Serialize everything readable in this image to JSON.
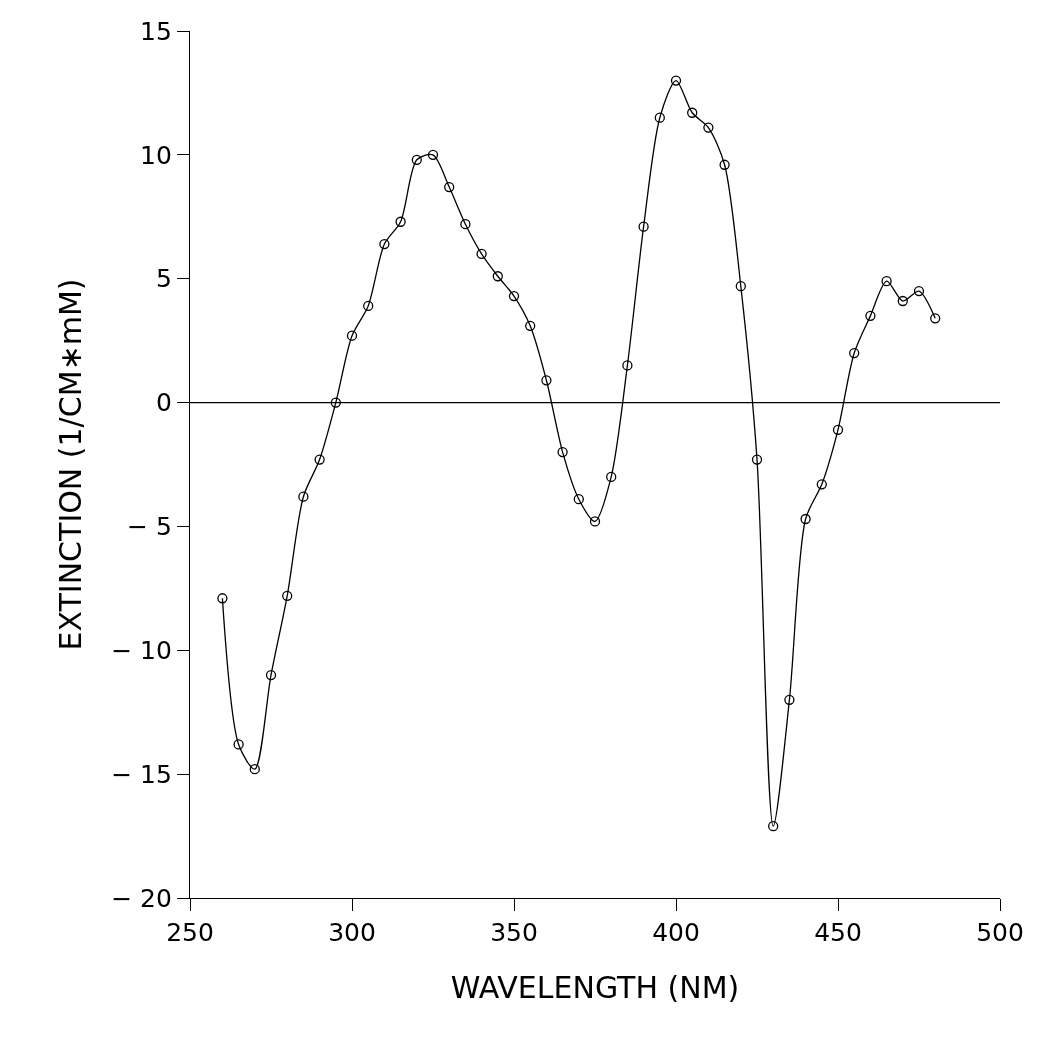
{
  "chart_data": {
    "type": "line",
    "xlabel": "WAVELENGTH (NM)",
    "ylabel": "EXTINCTION (1/CM∗mM)",
    "x": [
      260,
      265,
      270,
      275,
      280,
      285,
      290,
      295,
      300,
      305,
      310,
      315,
      320,
      325,
      330,
      335,
      340,
      345,
      350,
      355,
      360,
      365,
      370,
      375,
      380,
      385,
      390,
      395,
      400,
      405,
      410,
      415,
      420,
      425,
      430,
      435,
      440,
      445,
      450,
      455,
      460,
      465,
      470,
      475,
      480
    ],
    "series": [
      {
        "color": "#000000",
        "values": [
          -7.9,
          -13.8,
          -14.8,
          -11.0,
          -7.8,
          -3.8,
          -2.3,
          0.0,
          2.7,
          3.9,
          6.4,
          7.3,
          9.8,
          10.0,
          8.7,
          7.2,
          6.0,
          5.1,
          4.3,
          3.1,
          0.9,
          -2.0,
          -3.9,
          -4.8,
          -3.0,
          1.5,
          7.1,
          11.5,
          13.0,
          11.7,
          11.1,
          9.6,
          4.7,
          -2.3,
          -17.1,
          -12.0,
          -4.7,
          -3.3,
          -1.1,
          2.0,
          3.5,
          4.9,
          4.1,
          4.5,
          3.4
        ]
      }
    ],
    "xlim": [
      250,
      500
    ],
    "xticks": [
      250,
      300,
      350,
      400,
      450,
      500
    ],
    "ylim": [
      -20,
      15
    ],
    "yticks": [
      -20,
      -15,
      -10,
      -5,
      0,
      5,
      10,
      15
    ],
    "ref_lines": [
      {
        "axis": "y",
        "value": 0,
        "color": "#000000"
      }
    ],
    "marker": "circle",
    "line_style": "solid",
    "legend": false
  }
}
